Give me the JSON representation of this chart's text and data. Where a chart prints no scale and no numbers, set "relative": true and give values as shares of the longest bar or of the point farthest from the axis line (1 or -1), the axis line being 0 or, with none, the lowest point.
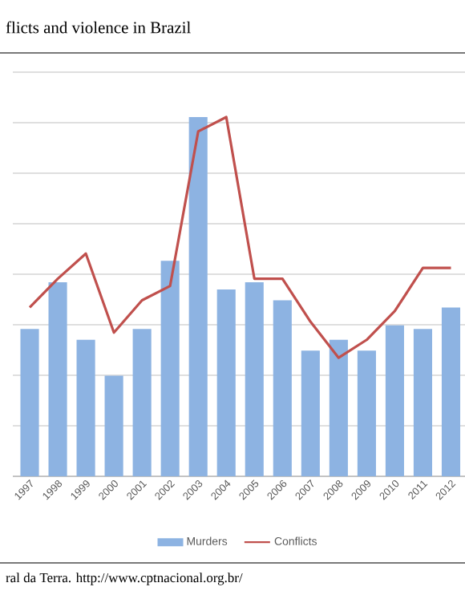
{
  "chart_data": {
    "type": "bar",
    "title": "flicts and violence in Brazil",
    "categories": [
      "1997",
      "1998",
      "1999",
      "2000",
      "2001",
      "2002",
      "2003",
      "2004",
      "2005",
      "2006",
      "2007",
      "2008",
      "2009",
      "2010",
      "2011",
      "2012"
    ],
    "series": [
      {
        "name": "Murders",
        "color": "#8db3e2",
        "values": [
          0.41,
          0.54,
          0.38,
          0.28,
          0.41,
          0.6,
          1,
          0.52,
          0.54,
          0.49,
          0.35,
          0.38,
          0.35,
          0.42,
          0.41,
          0.47
        ]
      },
      {
        "name": "Conflicts",
        "type": "line",
        "color": "#c0504d",
        "values": [
          0.47,
          0.55,
          0.62,
          0.4,
          0.49,
          0.53,
          0.96,
          1,
          0.55,
          0.55,
          0.43,
          0.33,
          0.38,
          0.46,
          0.58,
          0.58
        ]
      }
    ],
    "relative": true,
    "grid": "y",
    "legend": "bottom",
    "annotations": [
      "ral da Terra. http://www.cptnacional.org.br/"
    ]
  }
}
